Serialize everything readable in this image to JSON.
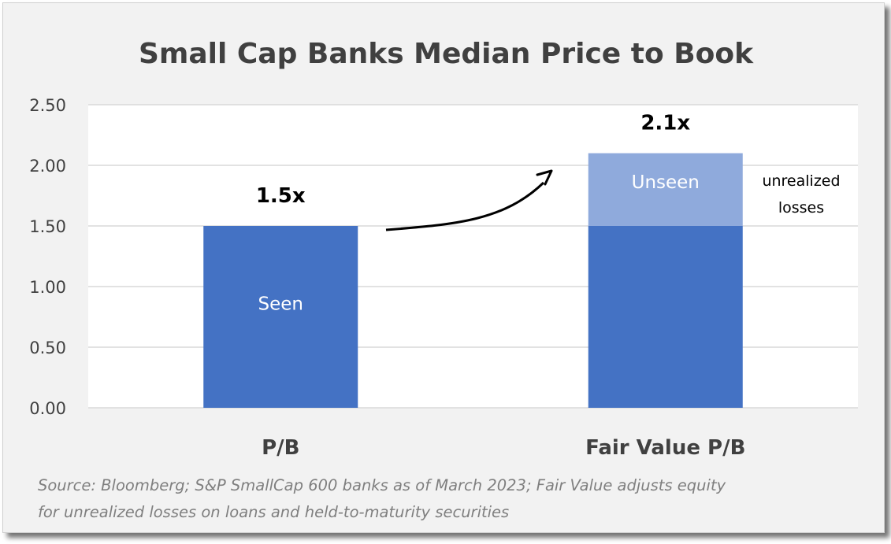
{
  "chart_data": {
    "type": "bar",
    "stacked": true,
    "title": "Small Cap Banks Median Price to Book",
    "categories": [
      "P/B",
      "Fair Value P/B"
    ],
    "series": [
      {
        "name": "Seen",
        "values": [
          1.5,
          1.5
        ],
        "color": "#4472c4"
      },
      {
        "name": "Unseen",
        "values": [
          0,
          0.6
        ],
        "color": "#8faadc"
      }
    ],
    "value_labels": [
      "1.5x",
      "2.1x"
    ],
    "segment_labels": {
      "seen": "Seen",
      "unseen": "Unseen"
    },
    "annotation": [
      "unrealized",
      "losses"
    ],
    "ylim": [
      0,
      2.5
    ],
    "yticks": [
      "0.00",
      "0.50",
      "1.00",
      "1.50",
      "2.00",
      "2.50"
    ],
    "grid": true,
    "legend": "none",
    "source_lines": [
      "Source: Bloomberg; S&P SmallCap 600 banks as of March 2023;  Fair Value adjusts equity",
      "for unrealized losses on loans and held-to-maturity securities"
    ]
  }
}
